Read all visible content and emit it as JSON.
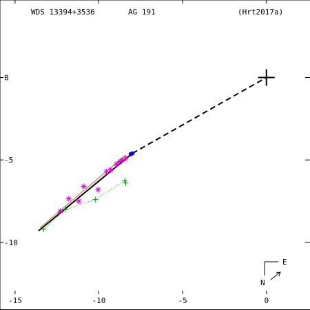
{
  "header": {
    "wds": "WDS 13394+3536",
    "discoverer": "AG  191",
    "reference": "(Hrt2017a)"
  },
  "compass": {
    "east": "E",
    "north": "N"
  },
  "chart_data": {
    "type": "scatter",
    "title": "",
    "xlabel": "",
    "ylabel": "",
    "xlim": [
      -15.9,
      2.6
    ],
    "ylim": [
      -14.1,
      4.7
    ],
    "x_ticks": [
      -15,
      -10,
      -5,
      0
    ],
    "x_tick_labels": [
      "-15",
      "-10",
      "-5",
      "0"
    ],
    "y_ticks": [
      0,
      -5,
      -10
    ],
    "y_tick_labels": [
      "0",
      "-5",
      "-10"
    ],
    "grid": false,
    "primary": [
      0,
      0
    ],
    "orbit_line": [
      [
        -13.6,
        -9.3
      ],
      [
        -8.0,
        -4.6
      ]
    ],
    "orbit_line_thin": [
      [
        -13.5,
        -9.1
      ],
      [
        -8.4,
        -4.7
      ]
    ],
    "predicted_path": [
      [
        -8.0,
        -4.6
      ],
      [
        0,
        0
      ]
    ],
    "series": [
      {
        "marker": "asterisk",
        "color": "#dd00dd",
        "points": [
          [
            -12.3,
            -8.1
          ],
          [
            -11.8,
            -7.35
          ],
          [
            -11.2,
            -7.5
          ],
          [
            -10.9,
            -6.6
          ],
          [
            -10.05,
            -6.8
          ],
          [
            -9.55,
            -5.7
          ],
          [
            -9.3,
            -5.6
          ],
          [
            -8.95,
            -5.25
          ],
          [
            -8.75,
            -5.1
          ],
          [
            -8.6,
            -5.0
          ],
          [
            -8.4,
            -4.9
          ]
        ]
      },
      {
        "marker": "plus",
        "color": "#009900",
        "points": [
          [
            -13.3,
            -9.2
          ],
          [
            -12.0,
            -8.0
          ],
          [
            -10.2,
            -7.4
          ],
          [
            -8.45,
            -6.25
          ],
          [
            -8.4,
            -6.4
          ]
        ]
      },
      {
        "marker": "dot",
        "color": "#0000ff",
        "points": [
          [
            -8.1,
            -4.65
          ],
          [
            -8.0,
            -4.6
          ]
        ]
      }
    ]
  }
}
